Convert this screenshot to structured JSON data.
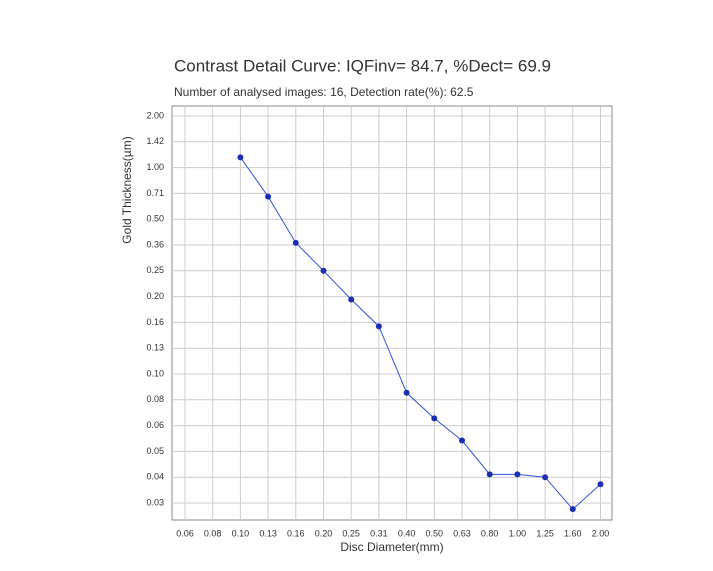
{
  "chart_data": {
    "type": "line",
    "title": "Contrast Detail Curve: IQFinv= 84.7, %Dect= 69.9",
    "subtitle": "Number of analysed images: 16, Detection rate(%): 62.5",
    "x_label": "Disc Diameter(mm)",
    "y_label": "Gold Thickness(µm)",
    "x": [
      0.1,
      0.13,
      0.16,
      0.2,
      0.25,
      0.31,
      0.4,
      0.5,
      0.63,
      0.8,
      1.0,
      1.25,
      1.6,
      2.0
    ],
    "series": [
      {
        "color": "#2e55e0",
        "values": [
          1.15,
          0.68,
          0.37,
          0.25,
          0.195,
          0.155,
          0.085,
          0.065,
          0.054,
          0.041,
          0.041,
          0.04,
          0.028,
          0.037
        ]
      }
    ],
    "xticks": [
      0.06,
      0.08,
      {
        "value": 0.1,
        "label": "0.10"
      },
      0.13,
      0.16,
      {
        "value": 0.2,
        "label": "0.20"
      },
      0.25,
      0.31,
      {
        "value": 0.4,
        "label": "0.40"
      },
      {
        "value": 0.5,
        "label": "0.50"
      },
      0.63,
      {
        "value": 0.8,
        "label": "0.80"
      },
      {
        "value": 1.0,
        "label": "1.00"
      },
      1.25,
      {
        "value": 1.6,
        "label": "1.60"
      },
      {
        "value": 2.0,
        "label": "2.00"
      }
    ],
    "yticks": [
      {
        "value": 2.0,
        "label": "2.00"
      },
      1.42,
      {
        "value": 1.0,
        "label": "1.00"
      },
      0.71,
      {
        "value": 0.5,
        "label": "0.50"
      },
      0.36,
      0.25,
      {
        "value": 0.2,
        "label": "0.20"
      },
      0.16,
      0.13,
      {
        "value": 0.1,
        "label": "0.10"
      },
      0.08,
      0.06,
      0.05,
      0.04,
      0.03
    ],
    "grid": true
  }
}
